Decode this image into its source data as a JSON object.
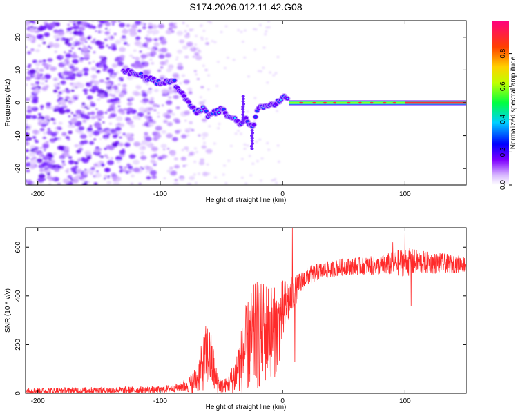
{
  "figure_title": "S174.2026.012.11.42.G08",
  "chart_data": [
    {
      "type": "heatmap",
      "title": "S174.2026.012.11.42.G08",
      "xlabel": "Height of straight line (km)",
      "ylabel": "Frequency (Hz)",
      "xlim": [
        -210,
        150
      ],
      "ylim": [
        -25,
        25
      ],
      "xticks": [
        -200,
        -100,
        0,
        100
      ],
      "yticks": [
        -20,
        -10,
        0,
        10,
        20
      ],
      "colorbar": {
        "label": "Normalized spectral amplitude",
        "range": [
          0,
          1
        ],
        "ticks": [
          0.0,
          0.2,
          0.4,
          0.6,
          0.8
        ],
        "colors": [
          "#ffffff",
          "#d6b3ff",
          "#7f00ff",
          "#0000ff",
          "#00ffff",
          "#00ff00",
          "#ffff00",
          "#ff8000",
          "#ff0000",
          "#ff0080"
        ]
      },
      "ridge": {
        "x": [
          -130,
          -115,
          -100,
          -90,
          -80,
          -75,
          -70,
          -65,
          -60,
          -55,
          -50,
          -45,
          -40,
          -35,
          -30,
          -25,
          -20,
          -15,
          -10,
          -5,
          0,
          5,
          10,
          20,
          40,
          60,
          80,
          100,
          150
        ],
        "y": [
          10,
          8,
          6,
          7,
          2,
          -1,
          -3,
          -2,
          -4,
          -3,
          -2,
          -4,
          -5,
          -6,
          -5,
          -8,
          -2,
          -1,
          -1,
          0,
          2,
          1,
          0,
          0,
          0,
          0,
          0,
          0,
          0
        ]
      },
      "steady_line": {
        "x_start": 5,
        "x_end": 150,
        "y": 0
      }
    },
    {
      "type": "line",
      "title": "",
      "xlabel": "Height of straight line (km)",
      "ylabel": "SNR (10 * v/v)",
      "xlim": [
        -210,
        150
      ],
      "ylim": [
        0,
        680
      ],
      "xticks": [
        -200,
        -100,
        0,
        100
      ],
      "yticks": [
        0,
        200,
        400,
        600
      ],
      "color": "#ff2a2a",
      "envelope": {
        "x": [
          -210,
          -150,
          -100,
          -85,
          -75,
          -70,
          -65,
          -62,
          -60,
          -57,
          -55,
          -50,
          -45,
          -40,
          -35,
          -30,
          -25,
          -20,
          -15,
          -10,
          -5,
          0,
          5,
          10,
          20,
          30,
          50,
          80,
          100,
          120,
          150
        ],
        "base": [
          10,
          12,
          14,
          25,
          40,
          60,
          120,
          160,
          150,
          110,
          60,
          30,
          35,
          60,
          120,
          180,
          220,
          240,
          250,
          260,
          250,
          330,
          380,
          420,
          480,
          500,
          520,
          525,
          540,
          535,
          530
        ],
        "spread": [
          12,
          14,
          14,
          18,
          40,
          60,
          110,
          140,
          130,
          110,
          60,
          30,
          30,
          70,
          120,
          180,
          220,
          230,
          220,
          200,
          180,
          140,
          100,
          60,
          40,
          35,
          35,
          40,
          60,
          45,
          35
        ]
      },
      "spikes": [
        {
          "x": 8,
          "y": 680
        },
        {
          "x": 10,
          "y": 130
        },
        {
          "x": 100,
          "y": 660
        },
        {
          "x": 105,
          "y": 360
        },
        {
          "x": 90,
          "y": 620
        }
      ]
    }
  ]
}
